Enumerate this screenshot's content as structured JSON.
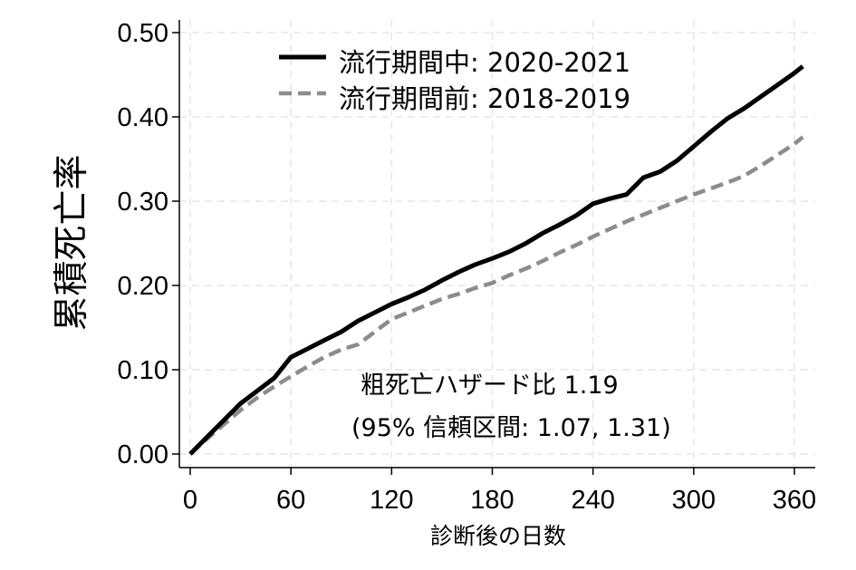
{
  "chart_data": {
    "type": "line",
    "title": "",
    "xlabel": "診断後の日数",
    "ylabel": "累積死亡率",
    "xlim": [
      0,
      365
    ],
    "ylim": [
      0,
      0.5
    ],
    "xticks": [
      0,
      60,
      120,
      180,
      240,
      300,
      360
    ],
    "xtick_labels": [
      "0",
      "60",
      "120",
      "180",
      "240",
      "300",
      "360"
    ],
    "yticks": [
      0,
      0.1,
      0.2,
      0.3,
      0.4,
      0.5
    ],
    "ytick_labels": [
      "0.00",
      "0.10",
      "0.20",
      "0.30",
      "0.40",
      "0.50"
    ],
    "grid": true,
    "legend_position": "top-center",
    "series": [
      {
        "name": "流行期間中: 2020-2021",
        "color": "#000000",
        "style": "solid",
        "x": [
          0,
          10,
          20,
          30,
          40,
          50,
          60,
          70,
          80,
          90,
          100,
          110,
          120,
          130,
          140,
          150,
          160,
          170,
          180,
          190,
          200,
          210,
          220,
          230,
          240,
          250,
          260,
          270,
          280,
          290,
          300,
          310,
          320,
          330,
          340,
          350,
          360,
          365
        ],
        "y": [
          0.0,
          0.02,
          0.04,
          0.06,
          0.075,
          0.09,
          0.115,
          0.125,
          0.135,
          0.145,
          0.158,
          0.168,
          0.178,
          0.186,
          0.195,
          0.206,
          0.216,
          0.225,
          0.232,
          0.24,
          0.25,
          0.262,
          0.272,
          0.283,
          0.297,
          0.303,
          0.308,
          0.328,
          0.335,
          0.348,
          0.365,
          0.382,
          0.398,
          0.41,
          0.424,
          0.438,
          0.452,
          0.46
        ]
      },
      {
        "name": "流行期間前: 2018-2019",
        "color": "#8c8c8c",
        "style": "dashed",
        "x": [
          0,
          10,
          20,
          30,
          40,
          50,
          60,
          70,
          80,
          90,
          100,
          110,
          120,
          130,
          140,
          150,
          160,
          170,
          180,
          190,
          200,
          210,
          220,
          230,
          240,
          250,
          260,
          270,
          280,
          290,
          300,
          310,
          320,
          330,
          340,
          350,
          360,
          365
        ],
        "y": [
          0.0,
          0.018,
          0.035,
          0.052,
          0.067,
          0.08,
          0.092,
          0.104,
          0.115,
          0.124,
          0.13,
          0.145,
          0.16,
          0.168,
          0.176,
          0.184,
          0.19,
          0.197,
          0.203,
          0.212,
          0.22,
          0.229,
          0.239,
          0.248,
          0.258,
          0.267,
          0.276,
          0.284,
          0.292,
          0.3,
          0.308,
          0.315,
          0.322,
          0.33,
          0.342,
          0.355,
          0.368,
          0.376
        ]
      }
    ],
    "annotations": [
      "粗死亡ハザード比 1.19",
      "(95% 信頼区間: 1.07, 1.31)"
    ]
  }
}
